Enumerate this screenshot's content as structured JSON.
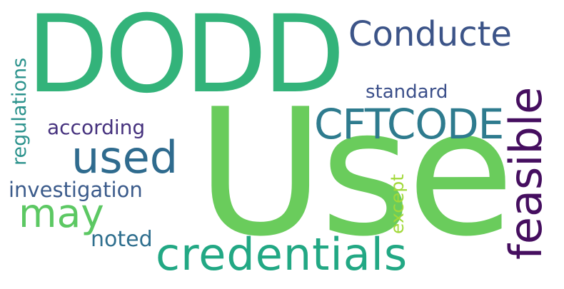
{
  "wordcloud": {
    "background": "#ffffff",
    "words": [
      {
        "key": "use",
        "text": "Use",
        "color": "#6acc5c"
      },
      {
        "key": "dodd",
        "text": "DODD",
        "color": "#33b37a"
      },
      {
        "key": "credentials",
        "text": "credentials",
        "color": "#22a884"
      },
      {
        "key": "feasible",
        "text": "feasible",
        "color": "#450e5f"
      },
      {
        "key": "cftcode",
        "text": "CFTCODE",
        "color": "#2e7b8e"
      },
      {
        "key": "conduct",
        "text": "Conducte",
        "color": "#3c5488"
      },
      {
        "key": "used",
        "text": "used",
        "color": "#2f6b8e"
      },
      {
        "key": "may",
        "text": "may",
        "color": "#5cc863"
      },
      {
        "key": "standard",
        "text": "standard",
        "color": "#3b4f8a"
      },
      {
        "key": "according",
        "text": "according",
        "color": "#46327e"
      },
      {
        "key": "regulations",
        "text": "regulations",
        "color": "#2b928c"
      },
      {
        "key": "investigation",
        "text": "investigation",
        "color": "#3b5b8b"
      },
      {
        "key": "except",
        "text": "except",
        "color": "#a2d93a"
      },
      {
        "key": "noted",
        "text": "noted",
        "color": "#2f6f8e"
      }
    ]
  }
}
